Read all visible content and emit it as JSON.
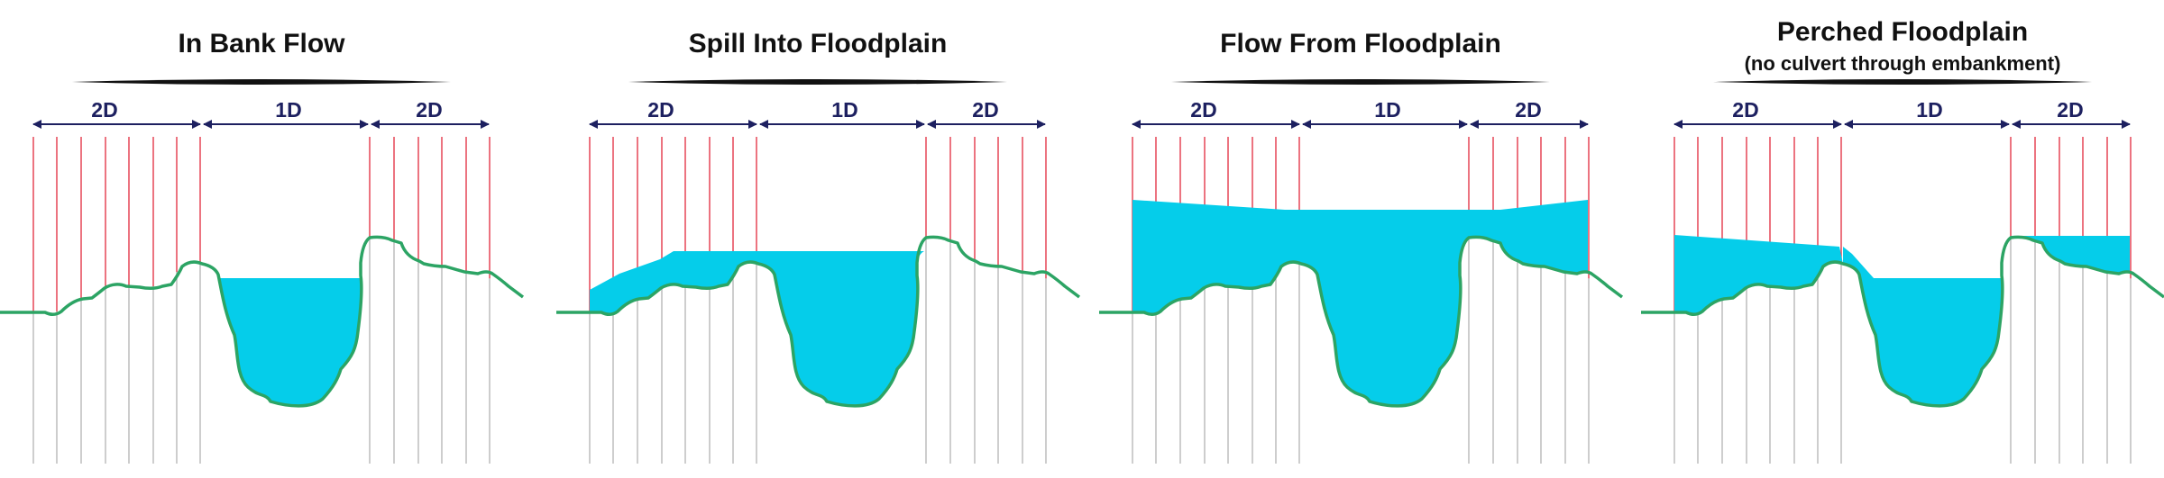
{
  "colors": {
    "water": "#05cdea",
    "ground": "#2ca464",
    "section_upper": "#e3384a",
    "section_lower": "#b8b8b8",
    "dimension": "#1d2060",
    "title_bar": "#111111"
  },
  "panels": [
    {
      "title": "In Bank Flow",
      "subtitle": "",
      "labels": {
        "left": "2D",
        "middle": "1D",
        "right": "2D"
      }
    },
    {
      "title": "Spill Into Floodplain",
      "subtitle": "",
      "labels": {
        "left": "2D",
        "middle": "1D",
        "right": "2D"
      }
    },
    {
      "title": "Flow From Floodplain",
      "subtitle": "",
      "labels": {
        "left": "2D",
        "middle": "1D",
        "right": "2D"
      }
    },
    {
      "title": "Perched Floodplain",
      "subtitle": "(no culvert through embankment)",
      "labels": {
        "left": "2D",
        "middle": "1D",
        "right": "2D"
      }
    }
  ]
}
